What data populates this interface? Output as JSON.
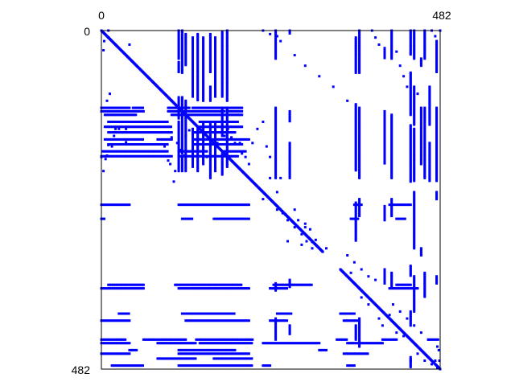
{
  "chart_data": {
    "type": "scatter",
    "title": "",
    "xlabel": "",
    "ylabel": "",
    "xlim": [
      0,
      482
    ],
    "ylim": [
      0,
      482
    ],
    "y_inverted": true,
    "tick_labels": {
      "x_left": "0",
      "x_right": "482",
      "y_top": "0",
      "y_bottom": "482"
    },
    "grid": false,
    "legend": "none",
    "marker_color": "#0000ff",
    "frame_color": "#000000",
    "background": "#ffffff",
    "diagonal_segments": [
      {
        "from": 0,
        "to": 100
      },
      {
        "from": 100,
        "to": 160
      },
      {
        "from": 160,
        "to": 228
      },
      {
        "from": 228,
        "to": 262
      },
      {
        "from": 262,
        "to": 315
      },
      {
        "from": 340,
        "to": 482
      }
    ],
    "columns": [
      {
        "x": 110,
        "ranges": [
          [
            0,
            40
          ],
          [
            45,
            60
          ],
          [
            95,
            125
          ],
          [
            130,
            200
          ]
        ]
      },
      {
        "x": 115,
        "ranges": [
          [
            0,
            60
          ],
          [
            95,
            175
          ],
          [
            180,
            200
          ]
        ]
      },
      {
        "x": 120,
        "ranges": [
          [
            5,
            50
          ],
          [
            100,
            200
          ]
        ]
      },
      {
        "x": 130,
        "ranges": [
          [
            10,
            95
          ],
          [
            140,
            195
          ]
        ]
      },
      {
        "x": 137,
        "ranges": [
          [
            5,
            100
          ],
          [
            140,
            200
          ]
        ]
      },
      {
        "x": 145,
        "ranges": [
          [
            10,
            100
          ],
          [
            130,
            190
          ]
        ]
      },
      {
        "x": 155,
        "ranges": [
          [
            5,
            60
          ],
          [
            80,
            100
          ],
          [
            130,
            210
          ]
        ]
      },
      {
        "x": 162,
        "ranges": [
          [
            10,
            95
          ],
          [
            130,
            200
          ]
        ]
      },
      {
        "x": 172,
        "ranges": [
          [
            2,
            95
          ],
          [
            110,
            150
          ],
          [
            175,
            205
          ]
        ]
      },
      {
        "x": 179,
        "ranges": [
          [
            0,
            100
          ],
          [
            110,
            195
          ]
        ]
      },
      {
        "x": 248,
        "ranges": [
          [
            0,
            40
          ],
          [
            110,
            210
          ],
          [
            360,
            370
          ],
          [
            410,
            440
          ]
        ]
      },
      {
        "x": 268,
        "ranges": [
          [
            0,
            5
          ],
          [
            115,
            130
          ],
          [
            160,
            210
          ],
          [
            355,
            365
          ],
          [
            420,
            432
          ]
        ]
      },
      {
        "x": 362,
        "ranges": [
          [
            10,
            60
          ],
          [
            105,
            200
          ],
          [
            245,
            300
          ],
          [
            420,
            440
          ]
        ]
      },
      {
        "x": 367,
        "ranges": [
          [
            0,
            60
          ],
          [
            110,
            210
          ],
          [
            240,
            265
          ],
          [
            410,
            450
          ]
        ]
      },
      {
        "x": 403,
        "ranges": [
          [
            25,
            40
          ],
          [
            115,
            190
          ],
          [
            250,
            270
          ],
          [
            340,
            360
          ]
        ]
      },
      {
        "x": 413,
        "ranges": [
          [
            0,
            40
          ],
          [
            120,
            210
          ],
          [
            240,
            265
          ],
          [
            345,
            365
          ]
        ]
      },
      {
        "x": 440,
        "ranges": [
          [
            0,
            35
          ],
          [
            60,
            120
          ],
          [
            135,
            215
          ],
          [
            335,
            350
          ],
          [
            400,
            420
          ],
          [
            465,
            480
          ]
        ]
      },
      {
        "x": 445,
        "ranges": [
          [
            0,
            40
          ],
          [
            80,
            135
          ],
          [
            140,
            215
          ],
          [
            230,
            310
          ],
          [
            350,
            400
          ]
        ]
      },
      {
        "x": 455,
        "ranges": [
          [
            40,
            50
          ],
          [
            110,
            190
          ],
          [
            310,
            320
          ]
        ]
      },
      {
        "x": 460,
        "ranges": [
          [
            0,
            40
          ],
          [
            110,
            210
          ],
          [
            345,
            380
          ]
        ]
      },
      {
        "x": 467,
        "ranges": [
          [
            80,
            135
          ],
          [
            160,
            215
          ]
        ]
      },
      {
        "x": 477,
        "ranges": [
          [
            15,
            60
          ],
          [
            110,
            215
          ],
          [
            230,
            240
          ],
          [
            350,
            360
          ]
        ]
      }
    ],
    "scattered_points": [
      [
        0,
        0
      ],
      [
        4,
        15
      ],
      [
        3,
        28
      ],
      [
        10,
        0
      ],
      [
        10,
        10
      ],
      [
        8,
        100
      ],
      [
        12,
        90
      ],
      [
        20,
        140
      ],
      [
        18,
        150
      ],
      [
        15,
        165
      ],
      [
        25,
        140
      ],
      [
        35,
        140
      ],
      [
        40,
        20
      ],
      [
        30,
        145
      ],
      [
        8,
        178
      ],
      [
        10,
        163
      ],
      [
        6,
        183
      ],
      [
        0,
        180
      ],
      [
        3,
        200
      ],
      [
        35,
        159
      ],
      [
        120,
        150
      ],
      [
        140,
        140
      ],
      [
        150,
        180
      ],
      [
        165,
        160
      ],
      [
        185,
        152
      ],
      [
        190,
        160
      ],
      [
        210,
        190
      ],
      [
        230,
        240
      ],
      [
        245,
        245
      ],
      [
        250,
        255
      ],
      [
        265,
        270
      ],
      [
        275,
        280
      ],
      [
        285,
        290
      ],
      [
        292,
        300
      ],
      [
        240,
        180
      ],
      [
        255,
        210
      ],
      [
        285,
        305
      ],
      [
        290,
        275
      ],
      [
        300,
        310
      ],
      [
        95,
        145
      ],
      [
        100,
        152
      ],
      [
        98,
        190
      ],
      [
        105,
        200
      ],
      [
        103,
        215
      ],
      [
        112,
        170
      ],
      [
        90,
        165
      ],
      [
        95,
        185
      ],
      [
        108,
        160
      ],
      [
        118,
        178
      ],
      [
        125,
        142
      ],
      [
        180,
        140
      ],
      [
        170,
        145
      ],
      [
        175,
        150
      ],
      [
        197,
        160
      ],
      [
        200,
        175
      ],
      [
        205,
        180
      ],
      [
        215,
        160
      ],
      [
        222,
        140
      ],
      [
        230,
        130
      ],
      [
        235,
        165
      ],
      [
        240,
        210
      ],
      [
        250,
        230
      ],
      [
        258,
        260
      ],
      [
        265,
        300
      ],
      [
        275,
        255
      ],
      [
        280,
        270
      ],
      [
        290,
        280
      ],
      [
        297,
        283
      ],
      [
        300,
        301
      ],
      [
        305,
        298
      ],
      [
        320,
        310
      ],
      [
        355,
        345
      ],
      [
        370,
        380
      ],
      [
        380,
        390
      ],
      [
        395,
        410
      ],
      [
        400,
        420
      ],
      [
        410,
        405
      ],
      [
        420,
        430
      ],
      [
        430,
        435
      ],
      [
        440,
        470
      ],
      [
        450,
        460
      ],
      [
        460,
        470
      ],
      [
        470,
        475
      ],
      [
        475,
        470
      ],
      [
        478,
        480
      ],
      [
        482,
        482
      ],
      [
        350,
        320
      ],
      [
        360,
        330
      ],
      [
        370,
        340
      ],
      [
        380,
        350
      ],
      [
        390,
        355
      ],
      [
        415,
        390
      ],
      [
        425,
        400
      ],
      [
        435,
        410
      ],
      [
        445,
        420
      ],
      [
        455,
        430
      ],
      [
        465,
        440
      ],
      [
        478,
        450
      ],
      [
        480,
        455
      ],
      [
        481,
        470
      ],
      [
        230,
        0
      ],
      [
        240,
        5
      ],
      [
        250,
        8
      ],
      [
        255,
        15
      ],
      [
        275,
        35
      ],
      [
        290,
        50
      ],
      [
        310,
        65
      ],
      [
        330,
        80
      ],
      [
        350,
        100
      ],
      [
        385,
        0
      ],
      [
        390,
        10
      ],
      [
        395,
        20
      ],
      [
        420,
        30
      ],
      [
        425,
        50
      ],
      [
        430,
        65
      ],
      [
        435,
        80
      ],
      [
        450,
        90
      ],
      [
        470,
        0
      ],
      [
        475,
        8
      ],
      [
        482,
        0
      ]
    ]
  }
}
